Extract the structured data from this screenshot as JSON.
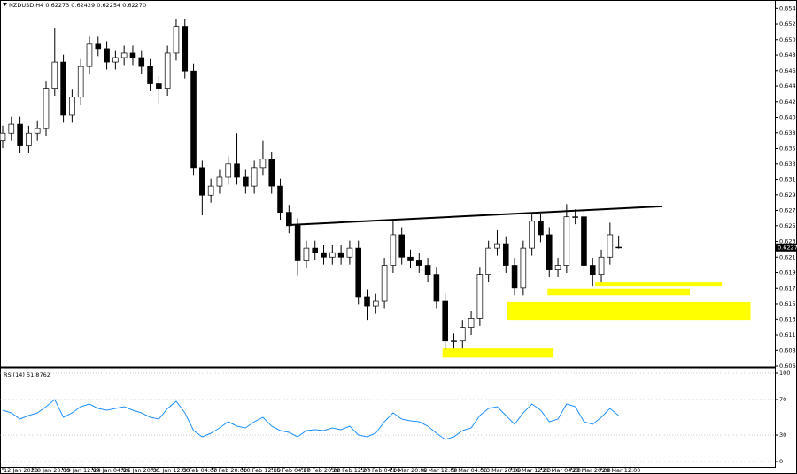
{
  "chart_data": [
    {
      "type": "candlestick",
      "title": "NZDUSD,H4  0.62273 0.62429 0.62254 0.62270",
      "open": [
        0.637,
        0.638,
        0.6392,
        0.6363,
        0.638,
        0.6386,
        0.644,
        0.6475,
        0.6404,
        0.6428,
        0.6469,
        0.6499,
        0.6493,
        0.6475,
        0.6481,
        0.6487,
        0.6481,
        0.6469,
        0.6446,
        0.644,
        0.6487,
        0.6523,
        0.6463,
        0.6333,
        0.6297,
        0.6309,
        0.6321,
        0.6339,
        0.6321,
        0.6309,
        0.6333,
        0.6345,
        0.6309,
        0.6274,
        0.6256,
        0.6209,
        0.6226,
        0.622,
        0.6214,
        0.622,
        0.6214,
        0.6226,
        0.6161,
        0.6149,
        0.6155,
        0.6203,
        0.6244,
        0.6214,
        0.6209,
        0.6203,
        0.6191,
        0.6155,
        0.6102,
        0.6102,
        0.612,
        0.6132,
        0.6191,
        0.6226,
        0.6232,
        0.6203,
        0.6173,
        0.6226,
        0.6262,
        0.6244,
        0.6197,
        0.6203,
        0.6268,
        0.6268,
        0.6203,
        0.6191,
        0.6214,
        0.62273
      ],
      "high": [
        0.639,
        0.6402,
        0.6402,
        0.639,
        0.6396,
        0.645,
        0.652,
        0.6485,
        0.6438,
        0.6479,
        0.6509,
        0.6509,
        0.6503,
        0.6491,
        0.6497,
        0.6497,
        0.6491,
        0.6479,
        0.6456,
        0.6497,
        0.6533,
        0.6533,
        0.6473,
        0.6343,
        0.6319,
        0.6331,
        0.6349,
        0.638,
        0.6331,
        0.6343,
        0.637,
        0.6355,
        0.6319,
        0.6284,
        0.6266,
        0.6236,
        0.6236,
        0.623,
        0.623,
        0.623,
        0.6236,
        0.6236,
        0.6171,
        0.6165,
        0.6213,
        0.6265,
        0.6254,
        0.6224,
        0.6219,
        0.6213,
        0.6201,
        0.6165,
        0.6112,
        0.613,
        0.6142,
        0.6201,
        0.6236,
        0.625,
        0.6242,
        0.6213,
        0.6236,
        0.6272,
        0.6272,
        0.6254,
        0.6213,
        0.6285,
        0.6278,
        0.6278,
        0.6213,
        0.6224,
        0.626,
        0.62429
      ],
      "low": [
        0.636,
        0.637,
        0.6353,
        0.6353,
        0.637,
        0.6376,
        0.643,
        0.6394,
        0.6394,
        0.6418,
        0.6459,
        0.6483,
        0.6465,
        0.6465,
        0.6471,
        0.6471,
        0.6459,
        0.6436,
        0.642,
        0.643,
        0.6477,
        0.6453,
        0.6323,
        0.627,
        0.6287,
        0.6299,
        0.6311,
        0.6311,
        0.6299,
        0.6299,
        0.6323,
        0.6299,
        0.6264,
        0.6246,
        0.619,
        0.6199,
        0.621,
        0.6204,
        0.6204,
        0.6204,
        0.6204,
        0.6151,
        0.613,
        0.6139,
        0.6145,
        0.6193,
        0.6204,
        0.6199,
        0.6193,
        0.6181,
        0.6145,
        0.609,
        0.6092,
        0.6092,
        0.611,
        0.6122,
        0.6181,
        0.6216,
        0.6193,
        0.6163,
        0.6163,
        0.6216,
        0.6234,
        0.6187,
        0.6187,
        0.6193,
        0.6258,
        0.6193,
        0.6175,
        0.6181,
        0.6204,
        0.62254
      ],
      "close": [
        0.638,
        0.6392,
        0.6363,
        0.638,
        0.6386,
        0.644,
        0.6475,
        0.6404,
        0.6428,
        0.6469,
        0.6499,
        0.6493,
        0.6475,
        0.6481,
        0.6487,
        0.6481,
        0.6469,
        0.6446,
        0.644,
        0.6487,
        0.6523,
        0.6463,
        0.6333,
        0.6297,
        0.6309,
        0.6321,
        0.6339,
        0.6321,
        0.6309,
        0.6333,
        0.6345,
        0.6309,
        0.6274,
        0.6256,
        0.6209,
        0.6226,
        0.622,
        0.6214,
        0.622,
        0.6214,
        0.6226,
        0.6161,
        0.6149,
        0.6155,
        0.6203,
        0.6244,
        0.6214,
        0.6209,
        0.6203,
        0.6191,
        0.6155,
        0.6102,
        0.6102,
        0.612,
        0.6132,
        0.6191,
        0.6226,
        0.6232,
        0.6203,
        0.6173,
        0.6226,
        0.6262,
        0.6244,
        0.6197,
        0.6203,
        0.6268,
        0.6268,
        0.6203,
        0.6191,
        0.6214,
        0.6244,
        0.6227
      ],
      "up_color": "#ffffff",
      "down_color": "#000000",
      "xlim": [
        0,
        89
      ],
      "xticks": [
        {
          "value": 0,
          "label": "12 Jan 2023"
        },
        {
          "value": 3.45,
          "label": "18 Jan 20:00"
        },
        {
          "value": 6.9,
          "label": "19 Jan 12:00"
        },
        {
          "value": 10.35,
          "label": "24 Jan 04:00"
        },
        {
          "value": 13.8,
          "label": "26 Jan 20:00"
        },
        {
          "value": 17.25,
          "label": "31 Jan 12:00"
        },
        {
          "value": 20.7,
          "label": "3 Feb 04:00"
        },
        {
          "value": 24.15,
          "label": "7 Feb 20:00"
        },
        {
          "value": 27.6,
          "label": "10 Feb 12:00"
        },
        {
          "value": 31.05,
          "label": "15 Feb 04:00"
        },
        {
          "value": 34.5,
          "label": "17 Feb 20:00"
        },
        {
          "value": 37.95,
          "label": "22 Feb 12:00"
        },
        {
          "value": 41.4,
          "label": "27 Feb 04:00"
        },
        {
          "value": 44.85,
          "label": "1 Mar 20:00"
        },
        {
          "value": 48.3,
          "label": "6 Mar 12:00"
        },
        {
          "value": 51.75,
          "label": "9 Mar 04:00"
        },
        {
          "value": 55.2,
          "label": "13 Mar 20:00"
        },
        {
          "value": 58.65,
          "label": "16 Mar 12:00"
        },
        {
          "value": 62.1,
          "label": "21 Mar 04:00"
        },
        {
          "value": 65.55,
          "label": "23 Mar 20:00"
        },
        {
          "value": 69,
          "label": "28 Mar 12:00"
        }
      ],
      "ylim": [
        0.60685,
        0.65545
      ],
      "yticks": [
        {
          "value": 0.6547,
          "label": "0.65470"
        },
        {
          "value": 0.6526,
          "label": "0.65260"
        },
        {
          "value": 0.6505,
          "label": "0.65050"
        },
        0.64845,
        0.64635,
        {
          "value": 0.6443,
          "label": "0.64430"
        },
        {
          "value": 0.6422,
          "label": "0.64220"
        },
        {
          "value": 0.6401,
          "label": "0.64010"
        },
        0.63805,
        0.63595,
        {
          "value": 0.6339,
          "label": "0.63390"
        },
        {
          "value": 0.6318,
          "label": "0.63180"
        },
        0.62975,
        0.62765,
        {
          "value": 0.6256,
          "label": "0.62560"
        },
        {
          "value": 0.6235,
          "label": "0.62350"
        },
        {
          "value": 0.6214,
          "label": "0.62140"
        },
        0.61935,
        0.61725,
        0.61515,
        {
          "value": 0.6131,
          "label": "0.61310"
        },
        {
          "value": 0.611,
          "label": "0.61100"
        },
        0.60895,
        0.60685
      ],
      "last_price": {
        "value": 0.6227,
        "label": "0.62270"
      },
      "trendline": {
        "x": [
          33,
          76
        ],
        "y": [
          0.6257,
          0.6282
        ],
        "color": "#000000"
      },
      "zones": [
        {
          "x": [
            50.7,
            63.5
          ],
          "y": [
            0.608,
            0.6092
          ]
        },
        {
          "x": [
            58.1,
            86.2
          ],
          "y": [
            0.613,
            0.6154
          ]
        },
        {
          "x": [
            62.8,
            79.2
          ],
          "y": [
            0.6163,
            0.6172
          ]
        },
        {
          "x": [
            68.3,
            82.9
          ],
          "y": [
            0.6175,
            0.6181
          ]
        }
      ],
      "zone_color": "#ffff00"
    },
    {
      "type": "line",
      "title": "RSI(14) 51.8762",
      "color": "#1e90ff",
      "values": [
        58,
        55,
        48,
        52,
        55,
        62,
        70,
        50,
        55,
        62,
        65,
        60,
        58,
        60,
        62,
        58,
        55,
        50,
        48,
        60,
        68,
        55,
        35,
        28,
        32,
        38,
        45,
        40,
        38,
        45,
        50,
        40,
        35,
        33,
        28,
        35,
        36,
        35,
        38,
        36,
        40,
        30,
        28,
        32,
        45,
        55,
        48,
        46,
        45,
        40,
        32,
        25,
        28,
        35,
        38,
        52,
        60,
        62,
        52,
        42,
        55,
        65,
        58,
        45,
        48,
        65,
        62,
        45,
        42,
        50,
        60,
        52
      ],
      "ylim": [
        0,
        100
      ],
      "yticks": [
        0,
        30,
        70,
        100
      ]
    }
  ]
}
